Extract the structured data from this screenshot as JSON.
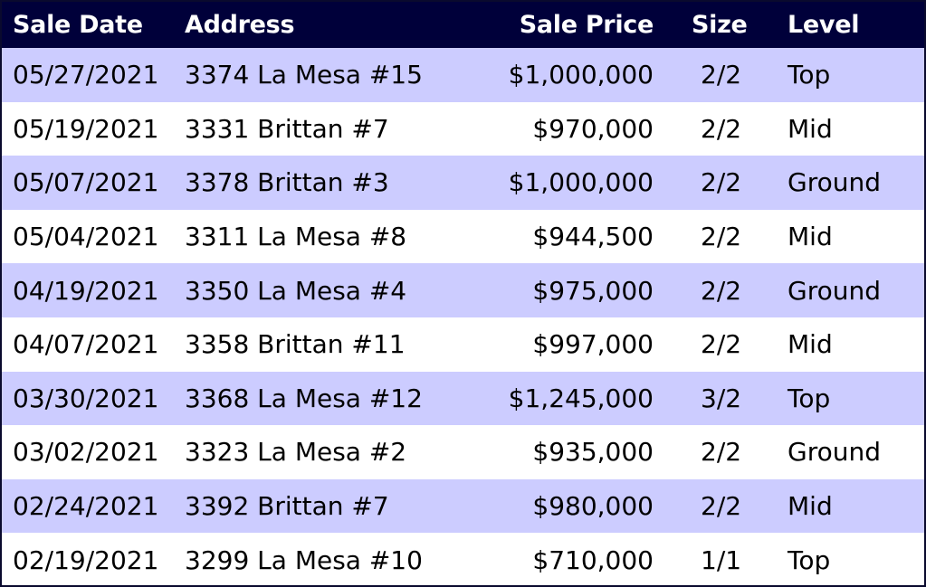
{
  "table": {
    "headers": {
      "sale_date": "Sale Date",
      "address": "Address",
      "sale_price": "Sale Price",
      "size": "Size",
      "level": "Level"
    },
    "rows": [
      {
        "sale_date": "05/27/2021",
        "address": "3374 La Mesa #15",
        "sale_price": "$1,000,000",
        "size": "2/2",
        "level": "Top"
      },
      {
        "sale_date": "05/19/2021",
        "address": "3331 Brittan #7",
        "sale_price": "$970,000",
        "size": "2/2",
        "level": "Mid"
      },
      {
        "sale_date": "05/07/2021",
        "address": "3378 Brittan #3",
        "sale_price": "$1,000,000",
        "size": "2/2",
        "level": "Ground"
      },
      {
        "sale_date": "05/04/2021",
        "address": "3311 La Mesa #8",
        "sale_price": "$944,500",
        "size": "2/2",
        "level": "Mid"
      },
      {
        "sale_date": "04/19/2021",
        "address": "3350 La Mesa #4",
        "sale_price": "$975,000",
        "size": "2/2",
        "level": "Ground"
      },
      {
        "sale_date": "04/07/2021",
        "address": "3358 Brittan #11",
        "sale_price": "$997,000",
        "size": "2/2",
        "level": "Mid"
      },
      {
        "sale_date": "03/30/2021",
        "address": "3368 La Mesa #12",
        "sale_price": "$1,245,000",
        "size": "3/2",
        "level": "Top"
      },
      {
        "sale_date": "03/02/2021",
        "address": "3323 La Mesa #2",
        "sale_price": "$935,000",
        "size": "2/2",
        "level": "Ground"
      },
      {
        "sale_date": "02/24/2021",
        "address": "3392 Brittan #7",
        "sale_price": "$980,000",
        "size": "2/2",
        "level": "Mid"
      },
      {
        "sale_date": "02/19/2021",
        "address": "3299 La Mesa #10",
        "sale_price": "$710,000",
        "size": "1/1",
        "level": "Top"
      }
    ]
  },
  "colors": {
    "header_bg": "#00003a",
    "header_text": "#ffffff",
    "row_alt_bg": "#ccccff",
    "row_bg": "#ffffff"
  }
}
